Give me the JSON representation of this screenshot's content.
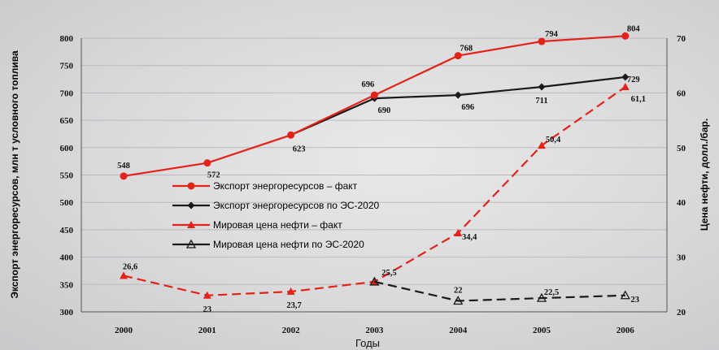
{
  "chart_data": {
    "type": "line",
    "x": [
      "2000",
      "2001",
      "2002",
      "2003",
      "2004",
      "2005",
      "2006"
    ],
    "xlabel": "Годы",
    "ylabel_left": "Экспорт энергоресурсов, млн т условного топлива",
    "ylabel_right": "Цена нефти, долл./бар.",
    "ylim_left": [
      300,
      800
    ],
    "ylim_right": [
      20,
      70
    ],
    "yticks_left": [
      "300",
      "350",
      "400",
      "450",
      "500",
      "550",
      "600",
      "650",
      "700",
      "750",
      "800"
    ],
    "yticks_right": [
      "20",
      "30",
      "40",
      "50",
      "60",
      "70"
    ],
    "legend_position": "center-left",
    "series": [
      {
        "name": "Экспорт энергоресурсов – факт",
        "axis": "left",
        "color": "#e32219",
        "line_style": "solid",
        "marker": "circle",
        "values": [
          548,
          572,
          623,
          696,
          768,
          794,
          804
        ],
        "labels": [
          "548",
          "572",
          "",
          "696",
          "768",
          "794",
          "804"
        ]
      },
      {
        "name": "Экспорт энергоресурсов по ЭС-2020",
        "axis": "left",
        "color": "#1a1a1a",
        "line_style": "solid",
        "marker": "diamond",
        "values": [
          null,
          null,
          623,
          690,
          696,
          711,
          729
        ],
        "labels": [
          "",
          "",
          "623",
          "690",
          "696",
          "711",
          "729"
        ]
      },
      {
        "name": "Мировая цена нефти – факт",
        "axis": "right",
        "color": "#e32219",
        "line_style": "dashed",
        "marker": "triangle",
        "values": [
          26.6,
          23,
          23.7,
          25.5,
          34.4,
          50.4,
          61.1
        ],
        "labels": [
          "26,6",
          "23",
          "23,7",
          "",
          "34,4",
          "50,4",
          "61,1"
        ]
      },
      {
        "name": "Мировая цена нефти по ЭС-2020",
        "axis": "right",
        "color": "#1a1a1a",
        "line_style": "dashed",
        "marker": "triangle-open",
        "values": [
          null,
          null,
          null,
          25.5,
          22,
          22.5,
          23
        ],
        "labels": [
          "",
          "",
          "",
          "25,5",
          "22",
          "22,5",
          "23"
        ]
      }
    ]
  }
}
